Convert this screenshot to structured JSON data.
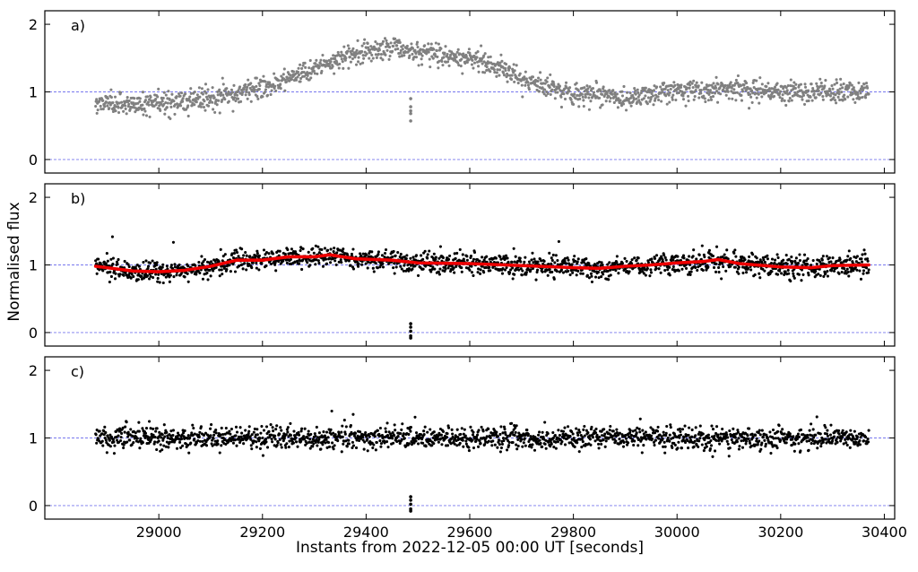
{
  "figure": {
    "xlabel": "Instants from 2022-12-05 00:00 UT [seconds]",
    "ylabel": "Normalised flux"
  },
  "chart_data": [
    {
      "type": "scatter",
      "panel_label": "a)",
      "marker_color": "#808080",
      "xlim": [
        28780,
        30420
      ],
      "ylim": [
        -0.2,
        2.2
      ],
      "xticks": [
        29000,
        29200,
        29400,
        29600,
        29800,
        30000,
        30200,
        30400
      ],
      "yticks": [
        0,
        1,
        2
      ],
      "reference_lines": [
        0,
        1
      ],
      "reference_line_color": "#7777ee",
      "series": [
        {
          "x_range": [
            28878,
            30370
          ],
          "trend_points": [
            [
              28878,
              0.84
            ],
            [
              29000,
              0.82
            ],
            [
              29100,
              0.89
            ],
            [
              29200,
              1.05
            ],
            [
              29300,
              1.35
            ],
            [
              29400,
              1.62
            ],
            [
              29450,
              1.66
            ],
            [
              29500,
              1.58
            ],
            [
              29600,
              1.5
            ],
            [
              29650,
              1.38
            ],
            [
              29700,
              1.2
            ],
            [
              29800,
              0.98
            ],
            [
              29900,
              0.92
            ],
            [
              30000,
              1.0
            ],
            [
              30100,
              1.06
            ],
            [
              30200,
              0.98
            ],
            [
              30300,
              1.0
            ],
            [
              30370,
              1.02
            ]
          ],
          "scatter_sd": 0.08,
          "dip_points": [
            [
              29486,
              0.9
            ],
            [
              29486,
              0.78
            ],
            [
              29486,
              0.72
            ],
            [
              29486,
              0.68
            ],
            [
              29486,
              0.57
            ]
          ]
        }
      ]
    },
    {
      "type": "scatter",
      "panel_label": "b)",
      "marker_color": "#000000",
      "fit_color": "#ee0000",
      "xlim": [
        28780,
        30420
      ],
      "ylim": [
        -0.2,
        2.2
      ],
      "xticks": [
        29000,
        29200,
        29400,
        29600,
        29800,
        30000,
        30200,
        30400
      ],
      "yticks": [
        0,
        1,
        2
      ],
      "reference_lines": [
        0,
        1
      ],
      "reference_line_color": "#7777ee",
      "series": [
        {
          "x_range": [
            28878,
            30370
          ],
          "trend_points": [
            [
              28878,
              0.98
            ],
            [
              28950,
              0.91
            ],
            [
              29000,
              0.9
            ],
            [
              29050,
              0.92
            ],
            [
              29100,
              0.98
            ],
            [
              29150,
              1.07
            ],
            [
              29200,
              1.07
            ],
            [
              29250,
              1.12
            ],
            [
              29300,
              1.12
            ],
            [
              29330,
              1.15
            ],
            [
              29380,
              1.09
            ],
            [
              29450,
              1.07
            ],
            [
              29500,
              1.03
            ],
            [
              29600,
              1.02
            ],
            [
              29700,
              0.99
            ],
            [
              29800,
              0.96
            ],
            [
              29850,
              0.95
            ],
            [
              29900,
              0.98
            ],
            [
              29950,
              1.0
            ],
            [
              30000,
              1.03
            ],
            [
              30050,
              1.05
            ],
            [
              30080,
              1.08
            ],
            [
              30120,
              1.02
            ],
            [
              30200,
              0.97
            ],
            [
              30260,
              0.96
            ],
            [
              30300,
              0.99
            ],
            [
              30370,
              1.0
            ]
          ],
          "scatter_sd": 0.08,
          "dip_points": [
            [
              29486,
              0.13
            ],
            [
              29486,
              0.08
            ],
            [
              29486,
              0.02
            ],
            [
              29486,
              -0.05
            ],
            [
              29486,
              -0.08
            ]
          ],
          "fit": "trend_points"
        }
      ]
    },
    {
      "type": "scatter",
      "panel_label": "c)",
      "marker_color": "#000000",
      "xlim": [
        28780,
        30420
      ],
      "ylim": [
        -0.2,
        2.2
      ],
      "xticks": [
        29000,
        29200,
        29400,
        29600,
        29800,
        30000,
        30200,
        30400
      ],
      "yticks": [
        0,
        1,
        2
      ],
      "reference_lines": [
        0,
        1
      ],
      "reference_line_color": "#7777ee",
      "series": [
        {
          "x_range": [
            28878,
            30370
          ],
          "trend_points": [
            [
              28878,
              1.0
            ],
            [
              30370,
              1.0
            ]
          ],
          "scatter_sd": 0.08,
          "dip_points": [
            [
              29486,
              0.13
            ],
            [
              29486,
              0.08
            ],
            [
              29486,
              0.02
            ],
            [
              29486,
              -0.05
            ],
            [
              29486,
              -0.08
            ]
          ]
        }
      ]
    }
  ]
}
